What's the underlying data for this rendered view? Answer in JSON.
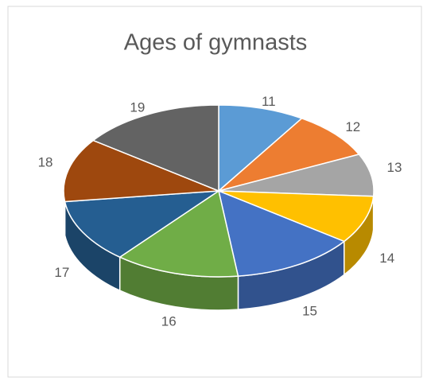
{
  "chart_data": {
    "type": "pie3d",
    "title": "Ages of gymnasts",
    "categories": [
      "11",
      "12",
      "13",
      "14",
      "15",
      "16",
      "17",
      "18",
      "19"
    ],
    "values": [
      9,
      9,
      8,
      9,
      13,
      13,
      12,
      12,
      15
    ],
    "colors": [
      "#5b9bd5",
      "#ed7d31",
      "#a5a5a5",
      "#ffc000",
      "#4472c4",
      "#70ad47",
      "#255e91",
      "#9e480e",
      "#636363"
    ]
  }
}
